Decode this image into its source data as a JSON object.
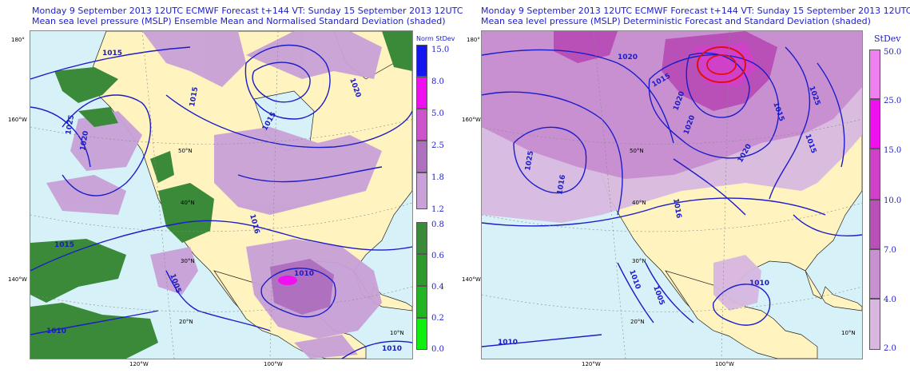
{
  "left_panel": {
    "title_line1": "Monday 9 September 2013 12UTC ECMWF Forecast t+144  VT: Sunday 15 September 2013 12UTC",
    "title_line2": "Mean sea level pressure (MSLP) Ensemble Mean and Normalised Standard Deviation (shaded)",
    "lat_labels": [
      "180°",
      "160°W",
      "140°W"
    ],
    "lon_labels": [
      "120°W",
      "100°W"
    ],
    "inner_labels": [
      "50°N",
      "40°N",
      "30°N",
      "20°N",
      "10°N"
    ],
    "isobar_labels": [
      "1015",
      "1025",
      "1020",
      "1015",
      "1020",
      "1015",
      "1016",
      "1015",
      "1010",
      "1010",
      "1005",
      "1010",
      "1010"
    ],
    "colorbar": {
      "title": "Norm StDev",
      "labels": [
        "15.0",
        "8.0",
        "5.0",
        "2.5",
        "1.8",
        "1.2",
        "0.8",
        "0.6",
        "0.4",
        "0.2",
        "0.0"
      ],
      "colors": [
        "#1515f0",
        "#ee10ee",
        "#cc55cc",
        "#b070c0",
        "#c9a0d8",
        "#3a8a3a",
        "#2e9a2e",
        "#22b422",
        "#16d016",
        "#10f010"
      ]
    }
  },
  "right_panel": {
    "title_line1": "Monday 9 September 2013 12UTC ECMWF Forecast t+144  VT: Sunday 15 September 2013 12UTC",
    "title_line2": "Mean sea level pressure (MSLP) Deterministic Forecast and Standard Deviation (shaded)",
    "lat_labels": [
      "180°",
      "160°W",
      "140°W"
    ],
    "lon_labels": [
      "120°W",
      "100°W"
    ],
    "inner_labels": [
      "50°N",
      "40°N",
      "30°N",
      "20°N",
      "10°N"
    ],
    "isobar_labels": [
      "1020",
      "1015",
      "1025",
      "1020",
      "1015",
      "1020",
      "1025",
      "1015",
      "1016",
      "1020",
      "1016",
      "1010",
      "1005",
      "1010",
      "1010"
    ],
    "colorbar": {
      "title": "StDev",
      "labels": [
        "50.0",
        "25.0",
        "15.0",
        "10.0",
        "7.0",
        "4.0",
        "2.0"
      ],
      "colors": [
        "#f080f0",
        "#ee10ee",
        "#d040c8",
        "#b850b8",
        "#c890d0",
        "#d8b8e0"
      ]
    }
  },
  "colors": {
    "ocean": "#d6f2f8",
    "land": "#fff3c0",
    "isobar": "#1c1cc8",
    "coast": "#222222",
    "red_contour": "#e01010"
  }
}
